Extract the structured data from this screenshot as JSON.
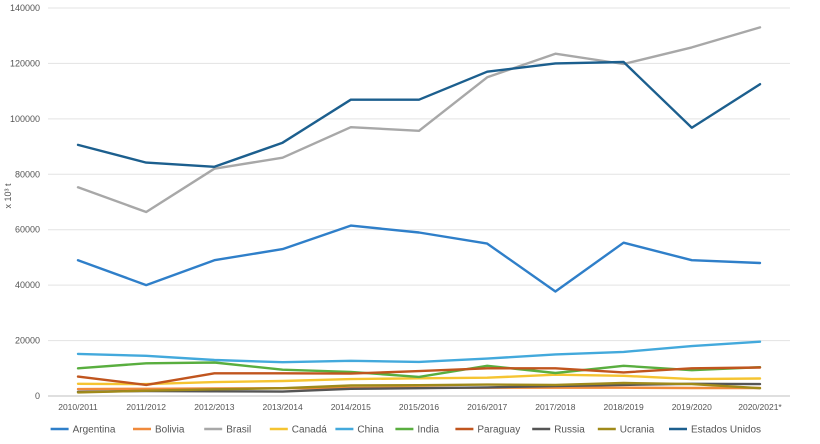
{
  "chart_data": {
    "type": "line",
    "title": "",
    "xlabel": "",
    "ylabel": "x 10³ t",
    "ylim": [
      0,
      140000
    ],
    "y_ticks": [
      "0",
      "20000",
      "40000",
      "60000",
      "80000",
      "100000",
      "120000",
      "140000"
    ],
    "grid": "horizontal",
    "legend_position": "bottom",
    "categories": [
      "2010/2011",
      "2011/2012",
      "2012/2013",
      "2013/2014",
      "2014/2015",
      "2015/2016",
      "2016/2017",
      "2017/2018",
      "2018/2019",
      "2019/2020",
      "2020/2021*"
    ],
    "series": [
      {
        "name": "Argentina",
        "color": "#2f7fc9",
        "values": [
          49000,
          40000,
          49000,
          53000,
          61500,
          59000,
          55000,
          37700,
          55300,
          49000,
          48000
        ]
      },
      {
        "name": "Bolivia",
        "color": "#f08a3c",
        "values": [
          2500,
          2600,
          2700,
          2800,
          2900,
          3000,
          3000,
          3000,
          3000,
          2900,
          2900
        ]
      },
      {
        "name": "Brasil",
        "color": "#a8a8a8",
        "values": [
          75300,
          66400,
          82000,
          86000,
          97000,
          95700,
          115000,
          123500,
          119800,
          125800,
          133000
        ]
      },
      {
        "name": "Canadá",
        "color": "#f5c431",
        "values": [
          4400,
          4300,
          5000,
          5400,
          6100,
          6400,
          6600,
          7700,
          7300,
          6100,
          6300
        ]
      },
      {
        "name": "China",
        "color": "#43a9dc",
        "values": [
          15200,
          14500,
          13000,
          12200,
          12700,
          12300,
          13500,
          15000,
          15900,
          18000,
          19600
        ]
      },
      {
        "name": "India",
        "color": "#59ae3f",
        "values": [
          10000,
          11800,
          12100,
          9500,
          8700,
          6900,
          10900,
          8300,
          10900,
          9300,
          10400
        ]
      },
      {
        "name": "Paraguay",
        "color": "#c0551e",
        "values": [
          7000,
          4000,
          8200,
          8200,
          8100,
          9000,
          10000,
          10000,
          8500,
          10000,
          10300
        ]
      },
      {
        "name": "Russia",
        "color": "#555555",
        "values": [
          1500,
          1800,
          1700,
          1600,
          2600,
          2800,
          3100,
          3600,
          4000,
          4400,
          4300
        ]
      },
      {
        "name": "Ucrania",
        "color": "#a08a1a",
        "values": [
          1300,
          1900,
          2400,
          2800,
          3800,
          3900,
          4100,
          4000,
          4700,
          4300,
          2800
        ]
      },
      {
        "name": "Estados Unidos",
        "color": "#1c5f8e",
        "values": [
          90600,
          84200,
          82700,
          91400,
          106900,
          106900,
          117000,
          120000,
          120500,
          96800,
          112500
        ]
      }
    ]
  }
}
